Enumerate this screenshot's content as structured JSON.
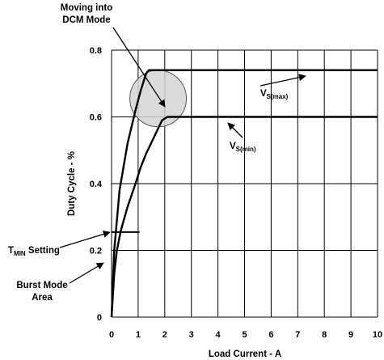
{
  "chart_data": {
    "type": "line",
    "xlabel": "Load Current - A",
    "ylabel": "Duty Cycle - %",
    "xlim": [
      0,
      10
    ],
    "ylim": [
      0,
      0.8
    ],
    "xticks": [
      "0",
      "1",
      "2",
      "3",
      "4",
      "5",
      "6",
      "7",
      "8",
      "9",
      "10"
    ],
    "yticks": [
      "0",
      "0.2",
      "0.4",
      "0.6",
      "0.8"
    ],
    "grid": true,
    "series": [
      {
        "name": "VS(max)",
        "x": [
          0.0,
          0.1,
          0.3,
          0.6,
          0.9,
          1.1,
          1.3,
          1.4,
          1.6,
          3,
          5,
          7,
          10
        ],
        "y": [
          0.0,
          0.2,
          0.38,
          0.52,
          0.62,
          0.68,
          0.73,
          0.74,
          0.74,
          0.74,
          0.74,
          0.74,
          0.74
        ]
      },
      {
        "name": "VS(min)",
        "x": [
          0.0,
          0.1,
          0.2,
          0.35,
          0.6,
          0.9,
          1.1,
          1.3,
          1.6,
          1.9,
          2.1,
          3,
          5,
          7,
          10
        ],
        "y": [
          0.0,
          0.13,
          0.2,
          0.26,
          0.33,
          0.4,
          0.45,
          0.49,
          0.54,
          0.59,
          0.6,
          0.6,
          0.6,
          0.6,
          0.6
        ]
      }
    ],
    "tmin_line": {
      "x": [
        0,
        1.05
      ],
      "y": 0.255
    },
    "dcm_circle": {
      "cx": 1.75,
      "cy": 0.655,
      "r_x_units": 2.5
    },
    "annotations": {
      "dcm": [
        "Moving into",
        "DCM Mode"
      ],
      "vsmax": {
        "main": "V",
        "sub": "S(max)"
      },
      "vsmin": {
        "main": "V",
        "sub": "S(min)"
      },
      "tmin": {
        "main": "T",
        "sub": "MIN",
        "rest": " Setting"
      },
      "burst": [
        "Burst Mode",
        "Area"
      ]
    }
  }
}
